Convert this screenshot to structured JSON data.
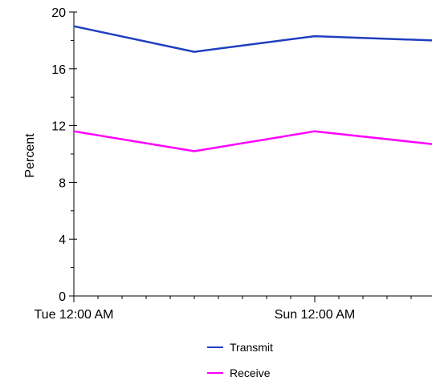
{
  "chart_data": {
    "type": "line",
    "title": "",
    "xlabel": "",
    "ylabel": "Percent",
    "ylim": [
      0,
      20
    ],
    "yticks": [
      0,
      4,
      8,
      12,
      16,
      20
    ],
    "x_tick_labels": [
      "Tue 12:00 AM",
      "Sun 12:00 AM"
    ],
    "x_points": 5,
    "grid": false,
    "legend_position": "bottom-center",
    "series": [
      {
        "name": "Transmit",
        "color": "#1f3fbf",
        "values": [
          19.0,
          17.2,
          18.3,
          18.0,
          18.0
        ]
      },
      {
        "name": "Receive",
        "color": "#ff00ff",
        "values": [
          11.6,
          10.2,
          11.6,
          10.7,
          10.7
        ]
      }
    ]
  }
}
